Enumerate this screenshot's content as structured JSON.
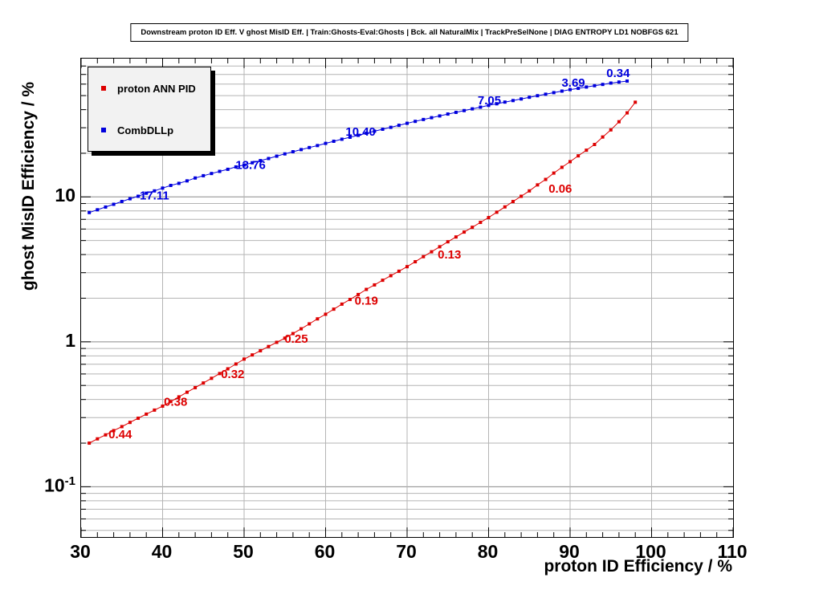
{
  "chart_data": {
    "type": "line",
    "title": "Downstream proton ID Eff. V ghost MisID Eff. | Train:Ghosts-Eval:Ghosts | Bck. all NaturalMix | TrackPreSelNone | DIAG ENTROPY LD1 NOBFGS 621",
    "xlabel": "proton ID Efficiency / %",
    "ylabel": "ghost MisID Efficiency / %",
    "xlim": [
      30,
      110
    ],
    "ylim": [
      0.045,
      90
    ],
    "yscale": "log",
    "grid": true,
    "x_major_ticks": [
      30,
      40,
      50,
      60,
      70,
      80,
      90,
      100,
      110
    ],
    "x_minor_step": 2,
    "y_major_ticks": [
      {
        "value": 10,
        "text": "10",
        "sup": ""
      },
      {
        "value": 1,
        "text": "1",
        "sup": ""
      },
      {
        "value": 0.1,
        "text": "10",
        "sup": "-1"
      }
    ],
    "legend": {
      "position": "top-left",
      "entries": [
        {
          "label": "proton ANN PID",
          "color": "#dd0000"
        },
        {
          "label": "CombDLLp",
          "color": "#0000dd"
        }
      ]
    },
    "series": [
      {
        "name": "proton ANN PID",
        "color": "#dd0000",
        "marker": "square",
        "x": [
          31,
          32,
          33,
          34,
          35,
          36,
          37,
          38,
          39,
          40,
          41,
          42,
          43,
          44,
          45,
          46,
          47,
          48,
          49,
          50,
          51,
          52,
          53,
          54,
          55,
          56,
          57,
          58,
          59,
          60,
          61,
          62,
          63,
          64,
          65,
          66,
          67,
          68,
          69,
          70,
          71,
          72,
          73,
          74,
          75,
          76,
          77,
          78,
          79,
          80,
          81,
          82,
          83,
          84,
          85,
          86,
          87,
          88,
          89,
          90,
          91,
          92,
          93,
          94,
          95,
          96,
          97,
          98
        ],
        "y": [
          0.2,
          0.214,
          0.228,
          0.244,
          0.26,
          0.278,
          0.297,
          0.317,
          0.338,
          0.36,
          0.387,
          0.417,
          0.449,
          0.483,
          0.52,
          0.56,
          0.604,
          0.651,
          0.703,
          0.76,
          0.812,
          0.868,
          0.928,
          0.992,
          1.06,
          1.14,
          1.23,
          1.33,
          1.44,
          1.55,
          1.68,
          1.82,
          1.96,
          2.12,
          2.3,
          2.47,
          2.66,
          2.86,
          3.07,
          3.3,
          3.57,
          3.87,
          4.18,
          4.53,
          4.9,
          5.29,
          5.72,
          6.17,
          6.67,
          7.2,
          7.84,
          8.53,
          9.29,
          10.1,
          11.0,
          12.1,
          13.2,
          14.6,
          16.0,
          17.5,
          19.2,
          21.0,
          23.0,
          25.9,
          29.0,
          33.0,
          38.0,
          45.0
        ],
        "labels": [
          {
            "text": "0.44",
            "x": 34.8,
            "y": 0.23
          },
          {
            "text": "0.38",
            "x": 41.6,
            "y": 0.385
          },
          {
            "text": "0.32",
            "x": 48.6,
            "y": 0.6
          },
          {
            "text": "0.25",
            "x": 56.4,
            "y": 1.05
          },
          {
            "text": "0.19",
            "x": 65.0,
            "y": 1.93
          },
          {
            "text": "0.13",
            "x": 75.2,
            "y": 4.0
          },
          {
            "text": "0.06",
            "x": 88.8,
            "y": 11.4
          }
        ]
      },
      {
        "name": "CombDLLp",
        "color": "#0000dd",
        "marker": "square",
        "x": [
          31,
          32,
          33,
          34,
          35,
          36,
          37,
          38,
          39,
          40,
          41,
          42,
          43,
          44,
          45,
          46,
          47,
          48,
          49,
          50,
          51,
          52,
          53,
          54,
          55,
          56,
          57,
          58,
          59,
          60,
          61,
          62,
          63,
          64,
          65,
          66,
          67,
          68,
          69,
          70,
          71,
          72,
          73,
          74,
          75,
          76,
          77,
          78,
          79,
          80,
          81,
          82,
          83,
          84,
          85,
          86,
          87,
          88,
          89,
          90,
          91,
          92,
          93,
          94,
          95,
          96,
          97
        ],
        "y": [
          7.8,
          8.15,
          8.51,
          8.89,
          9.3,
          9.71,
          10.1,
          10.6,
          11.0,
          11.5,
          12.0,
          12.4,
          12.9,
          13.5,
          14.0,
          14.5,
          15.0,
          15.5,
          16.1,
          16.6,
          17.2,
          17.8,
          18.4,
          19.1,
          19.8,
          20.5,
          21.2,
          21.9,
          22.6,
          23.4,
          24.2,
          25.0,
          25.8,
          26.6,
          27.5,
          28.4,
          29.3,
          30.2,
          31.2,
          32.2,
          33.2,
          34.2,
          35.2,
          36.2,
          37.3,
          38.3,
          39.4,
          40.5,
          41.6,
          42.8,
          43.9,
          45.1,
          46.2,
          47.4,
          48.7,
          49.9,
          51.1,
          52.4,
          53.7,
          55.0,
          56.1,
          57.3,
          58.5,
          59.7,
          61.0,
          62.0,
          63.0
        ],
        "labels": [
          {
            "text": "17.11",
            "x": 39.0,
            "y": 10.2
          },
          {
            "text": "13.76",
            "x": 50.8,
            "y": 16.6
          },
          {
            "text": "10.40",
            "x": 64.3,
            "y": 28.2
          },
          {
            "text": "7.05",
            "x": 80.1,
            "y": 46.5
          },
          {
            "text": "3.69",
            "x": 90.4,
            "y": 61.5
          },
          {
            "text": "0.34",
            "x": 95.9,
            "y": 71.5
          }
        ]
      }
    ]
  }
}
